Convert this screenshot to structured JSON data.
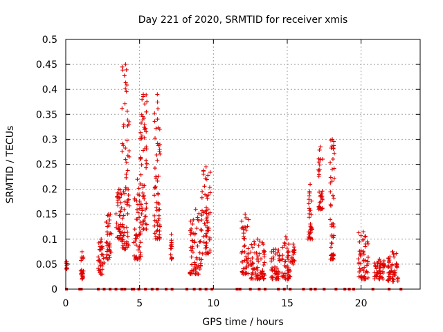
{
  "chart_data": {
    "type": "scatter",
    "title": "Day 221 of 2020, SRMTID for receiver xmis",
    "xlabel": "GPS time / hours",
    "ylabel": "SRMTID / TECUs",
    "xlim": [
      0,
      24
    ],
    "ylim": [
      0,
      0.5
    ],
    "xticks": [
      0,
      5,
      10,
      15,
      20
    ],
    "yticks": [
      0,
      0.05,
      0.1,
      0.15,
      0.2,
      0.25,
      0.3,
      0.35,
      0.4,
      0.45,
      0.5
    ],
    "grid": true,
    "marker": "+",
    "color": "#e00000",
    "baseline_hours": [
      0.05,
      0.95,
      1.05,
      2.2,
      2.6,
      3.0,
      3.4,
      3.8,
      4.0,
      4.5,
      4.6,
      4.95,
      5.4,
      5.85,
      6.2,
      6.8,
      7.2,
      8.2,
      8.7,
      9.1,
      9.5,
      9.9,
      11.6,
      11.8,
      12.5,
      13.1,
      13.5,
      14.4,
      14.8,
      15.2,
      16.1,
      16.6,
      16.9,
      17.5,
      18.3,
      18.9,
      19.2,
      19.5,
      20.8,
      21.9,
      22.7
    ],
    "clusters": [
      {
        "x": [
          0.0,
          0.1
        ],
        "y": [
          0.04,
          0.055
        ]
      },
      {
        "x": [
          1.0,
          1.2
        ],
        "y": [
          0.02,
          0.075
        ]
      },
      {
        "x": [
          2.2,
          2.6
        ],
        "y": [
          0.03,
          0.1
        ]
      },
      {
        "x": [
          2.7,
          3.1
        ],
        "y": [
          0.06,
          0.15
        ]
      },
      {
        "x": [
          3.4,
          3.8
        ],
        "y": [
          0.1,
          0.2
        ]
      },
      {
        "x": [
          3.8,
          4.3
        ],
        "y": [
          0.08,
          0.45
        ]
      },
      {
        "x": [
          4.6,
          5.1
        ],
        "y": [
          0.06,
          0.22
        ]
      },
      {
        "x": [
          5.0,
          5.5
        ],
        "y": [
          0.12,
          0.39
        ]
      },
      {
        "x": [
          6.0,
          6.4
        ],
        "y": [
          0.1,
          0.39
        ]
      },
      {
        "x": [
          7.1,
          7.2
        ],
        "y": [
          0.06,
          0.11
        ]
      },
      {
        "x": [
          8.4,
          9.2
        ],
        "y": [
          0.03,
          0.16
        ]
      },
      {
        "x": [
          9.2,
          9.8
        ],
        "y": [
          0.07,
          0.245
        ]
      },
      {
        "x": [
          11.9,
          12.4
        ],
        "y": [
          0.03,
          0.15
        ]
      },
      {
        "x": [
          12.5,
          13.5
        ],
        "y": [
          0.02,
          0.1
        ]
      },
      {
        "x": [
          13.9,
          14.5
        ],
        "y": [
          0.02,
          0.08
        ]
      },
      {
        "x": [
          14.6,
          15.2
        ],
        "y": [
          0.02,
          0.105
        ]
      },
      {
        "x": [
          15.3,
          15.5
        ],
        "y": [
          0.05,
          0.09
        ]
      },
      {
        "x": [
          16.4,
          16.7
        ],
        "y": [
          0.1,
          0.21
        ]
      },
      {
        "x": [
          17.1,
          17.4
        ],
        "y": [
          0.16,
          0.285
        ]
      },
      {
        "x": [
          17.9,
          18.2
        ],
        "y": [
          0.06,
          0.3
        ]
      },
      {
        "x": [
          19.8,
          20.5
        ],
        "y": [
          0.02,
          0.115
        ]
      },
      {
        "x": [
          20.9,
          21.6
        ],
        "y": [
          0.02,
          0.06
        ]
      },
      {
        "x": [
          21.8,
          22.5
        ],
        "y": [
          0.015,
          0.075
        ]
      }
    ]
  }
}
